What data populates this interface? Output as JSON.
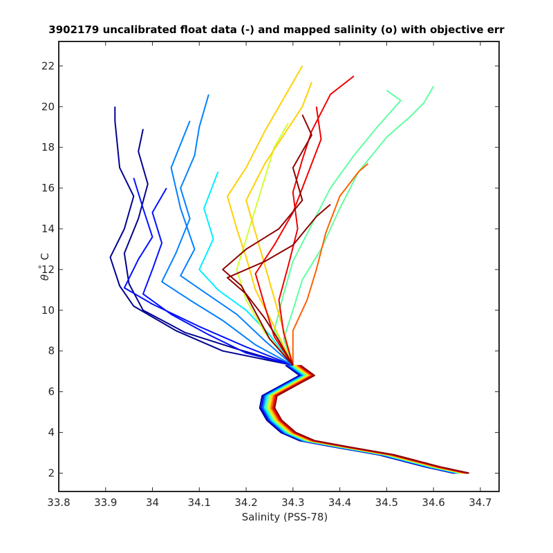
{
  "chart_data": {
    "type": "line",
    "title": "3902179 uncalibrated float data (-) and mapped salinity (o) with objective err",
    "xlabel": "Salinity (PSS-78)",
    "ylabel_theta": "θ",
    "ylabel_degree": "°",
    "ylabel_unit": "C",
    "xlim": [
      33.8,
      34.74
    ],
    "ylim": [
      1.1,
      23.2
    ],
    "x_ticks": [
      33.8,
      33.9,
      34,
      34.1,
      34.2,
      34.3,
      34.4,
      34.5,
      34.6,
      34.7
    ],
    "x_tick_labels": [
      "33.8",
      "33.9",
      "34",
      "34.1",
      "34.2",
      "34.3",
      "34.4",
      "34.5",
      "34.6",
      "34.7"
    ],
    "y_ticks": [
      2,
      4,
      6,
      8,
      10,
      12,
      14,
      16,
      18,
      20,
      22
    ],
    "y_tick_labels": [
      "2",
      "4",
      "6",
      "8",
      "10",
      "12",
      "14",
      "16",
      "18",
      "20",
      "22"
    ],
    "grid": false,
    "colormap": "jet",
    "colors": [
      "#00008f",
      "#0010ff",
      "#0080ff",
      "#00f0ff",
      "#60ffa0",
      "#d0ff30",
      "#ffd000",
      "#ff6000",
      "#ef0000",
      "#8f0000"
    ],
    "shared_deep_profile": [
      [
        34.66,
        2.0
      ],
      [
        34.6,
        2.3
      ],
      [
        34.5,
        2.9
      ],
      [
        34.4,
        3.3
      ],
      [
        34.33,
        3.6
      ],
      [
        34.29,
        4.0
      ],
      [
        34.26,
        4.6
      ],
      [
        34.245,
        5.2
      ],
      [
        34.25,
        5.8
      ],
      [
        34.29,
        6.3
      ],
      [
        34.33,
        6.8
      ],
      [
        34.3,
        7.3
      ]
    ],
    "upper_profiles": [
      {
        "color_index": 0,
        "points": [
          [
            34.3,
            7.3
          ],
          [
            34.15,
            8.0
          ],
          [
            34.05,
            9.0
          ],
          [
            33.96,
            10.2
          ],
          [
            33.93,
            11.2
          ],
          [
            33.91,
            12.6
          ],
          [
            33.94,
            14.0
          ],
          [
            33.96,
            15.6
          ],
          [
            33.93,
            17.0
          ],
          [
            33.92,
            19.3
          ],
          [
            33.92,
            20.0
          ]
        ]
      },
      {
        "color_index": 0,
        "points": [
          [
            34.3,
            7.3
          ],
          [
            34.18,
            8.1
          ],
          [
            34.07,
            8.9
          ],
          [
            33.98,
            10.0
          ],
          [
            33.95,
            11.3
          ],
          [
            33.94,
            12.8
          ],
          [
            33.97,
            14.5
          ],
          [
            33.99,
            16.2
          ],
          [
            33.97,
            17.8
          ],
          [
            33.98,
            18.9
          ]
        ]
      },
      {
        "color_index": 1,
        "points": [
          [
            34.3,
            7.3
          ],
          [
            34.2,
            8.2
          ],
          [
            34.1,
            9.2
          ],
          [
            34.0,
            10.3
          ],
          [
            33.94,
            11.1
          ],
          [
            33.97,
            12.5
          ],
          [
            34.0,
            13.6
          ],
          [
            33.98,
            15.0
          ],
          [
            33.96,
            16.5
          ]
        ]
      },
      {
        "color_index": 1,
        "points": [
          [
            34.3,
            7.3
          ],
          [
            34.2,
            7.9
          ],
          [
            34.12,
            8.8
          ],
          [
            34.04,
            9.8
          ],
          [
            33.98,
            10.8
          ],
          [
            34.0,
            12.0
          ],
          [
            34.02,
            13.3
          ],
          [
            34.0,
            14.8
          ],
          [
            34.03,
            16.0
          ]
        ]
      },
      {
        "color_index": 2,
        "points": [
          [
            34.3,
            7.3
          ],
          [
            34.22,
            8.3
          ],
          [
            34.15,
            9.5
          ],
          [
            34.08,
            10.5
          ],
          [
            34.02,
            11.4
          ],
          [
            34.05,
            12.8
          ],
          [
            34.08,
            14.5
          ],
          [
            34.06,
            16.0
          ],
          [
            34.09,
            17.6
          ],
          [
            34.1,
            19.0
          ],
          [
            34.12,
            20.6
          ]
        ]
      },
      {
        "color_index": 2,
        "points": [
          [
            34.3,
            7.3
          ],
          [
            34.24,
            8.5
          ],
          [
            34.18,
            9.8
          ],
          [
            34.11,
            10.9
          ],
          [
            34.06,
            11.7
          ],
          [
            34.09,
            13.0
          ],
          [
            34.06,
            15.0
          ],
          [
            34.04,
            17.0
          ],
          [
            34.08,
            19.3
          ]
        ]
      },
      {
        "color_index": 3,
        "points": [
          [
            34.3,
            7.3
          ],
          [
            34.25,
            8.8
          ],
          [
            34.2,
            10.0
          ],
          [
            34.14,
            11.0
          ],
          [
            34.1,
            12.0
          ],
          [
            34.13,
            13.5
          ],
          [
            34.11,
            15.0
          ],
          [
            34.14,
            16.8
          ]
        ]
      },
      {
        "color_index": 4,
        "points": [
          [
            34.3,
            7.3
          ],
          [
            34.28,
            8.6
          ],
          [
            34.3,
            10.0
          ],
          [
            34.32,
            11.5
          ],
          [
            34.36,
            13.0
          ],
          [
            34.4,
            15.0
          ],
          [
            34.44,
            16.8
          ],
          [
            34.5,
            18.5
          ],
          [
            34.55,
            19.5
          ],
          [
            34.58,
            20.2
          ],
          [
            34.6,
            21.0
          ]
        ]
      },
      {
        "color_index": 4,
        "points": [
          [
            34.3,
            7.3
          ],
          [
            34.26,
            9.0
          ],
          [
            34.28,
            10.8
          ],
          [
            34.3,
            12.4
          ],
          [
            34.34,
            14.2
          ],
          [
            34.38,
            16.0
          ],
          [
            34.43,
            17.6
          ],
          [
            34.48,
            19.0
          ],
          [
            34.53,
            20.3
          ],
          [
            34.5,
            20.8
          ]
        ]
      },
      {
        "color_index": 5,
        "points": [
          [
            34.3,
            7.3
          ],
          [
            34.24,
            8.9
          ],
          [
            34.2,
            10.5
          ],
          [
            34.18,
            12.0
          ],
          [
            34.2,
            13.5
          ],
          [
            34.22,
            15.0
          ],
          [
            34.24,
            16.5
          ],
          [
            34.26,
            18.0
          ],
          [
            34.29,
            19.2
          ]
        ]
      },
      {
        "color_index": 6,
        "points": [
          [
            34.3,
            7.3
          ],
          [
            34.26,
            9.2
          ],
          [
            34.22,
            11.0
          ],
          [
            34.2,
            12.6
          ],
          [
            34.18,
            14.0
          ],
          [
            34.16,
            15.6
          ],
          [
            34.2,
            17.0
          ],
          [
            34.24,
            18.8
          ],
          [
            34.28,
            20.4
          ],
          [
            34.32,
            22.0
          ]
        ]
      },
      {
        "color_index": 6,
        "points": [
          [
            34.3,
            7.3
          ],
          [
            34.28,
            9.0
          ],
          [
            34.26,
            10.6
          ],
          [
            34.24,
            12.2
          ],
          [
            34.22,
            13.8
          ],
          [
            34.2,
            15.4
          ],
          [
            34.24,
            17.2
          ],
          [
            34.28,
            18.6
          ],
          [
            34.32,
            20.0
          ],
          [
            34.34,
            21.2
          ]
        ]
      },
      {
        "color_index": 7,
        "points": [
          [
            34.3,
            7.3
          ],
          [
            34.3,
            9.0
          ],
          [
            34.33,
            10.5
          ],
          [
            34.35,
            12.0
          ],
          [
            34.37,
            13.8
          ],
          [
            34.4,
            15.6
          ],
          [
            34.44,
            16.8
          ],
          [
            34.46,
            17.2
          ]
        ]
      },
      {
        "color_index": 8,
        "points": [
          [
            34.3,
            7.3
          ],
          [
            34.28,
            8.9
          ],
          [
            34.27,
            10.5
          ],
          [
            34.29,
            12.2
          ],
          [
            34.31,
            14.0
          ],
          [
            34.3,
            15.8
          ],
          [
            34.32,
            17.4
          ],
          [
            34.34,
            18.8
          ],
          [
            34.38,
            20.6
          ],
          [
            34.43,
            21.5
          ]
        ]
      },
      {
        "color_index": 8,
        "points": [
          [
            34.3,
            7.3
          ],
          [
            34.26,
            8.7
          ],
          [
            34.24,
            10.2
          ],
          [
            34.22,
            11.8
          ],
          [
            34.26,
            13.2
          ],
          [
            34.3,
            14.8
          ],
          [
            34.33,
            16.6
          ],
          [
            34.36,
            18.4
          ],
          [
            34.35,
            20.0
          ]
        ]
      },
      {
        "color_index": 9,
        "points": [
          [
            34.3,
            7.3
          ],
          [
            34.25,
            8.6
          ],
          [
            34.22,
            9.9
          ],
          [
            34.19,
            11.2
          ],
          [
            34.15,
            12.0
          ],
          [
            34.2,
            13.0
          ],
          [
            34.27,
            14.0
          ],
          [
            34.32,
            15.4
          ],
          [
            34.3,
            17.0
          ],
          [
            34.34,
            18.6
          ],
          [
            34.32,
            19.6
          ]
        ]
      },
      {
        "color_index": 9,
        "points": [
          [
            34.3,
            7.3
          ],
          [
            34.27,
            8.5
          ],
          [
            34.24,
            9.6
          ],
          [
            34.2,
            10.8
          ],
          [
            34.16,
            11.6
          ],
          [
            34.24,
            12.4
          ],
          [
            34.3,
            13.2
          ],
          [
            34.35,
            14.6
          ],
          [
            34.38,
            15.2
          ]
        ]
      }
    ]
  }
}
